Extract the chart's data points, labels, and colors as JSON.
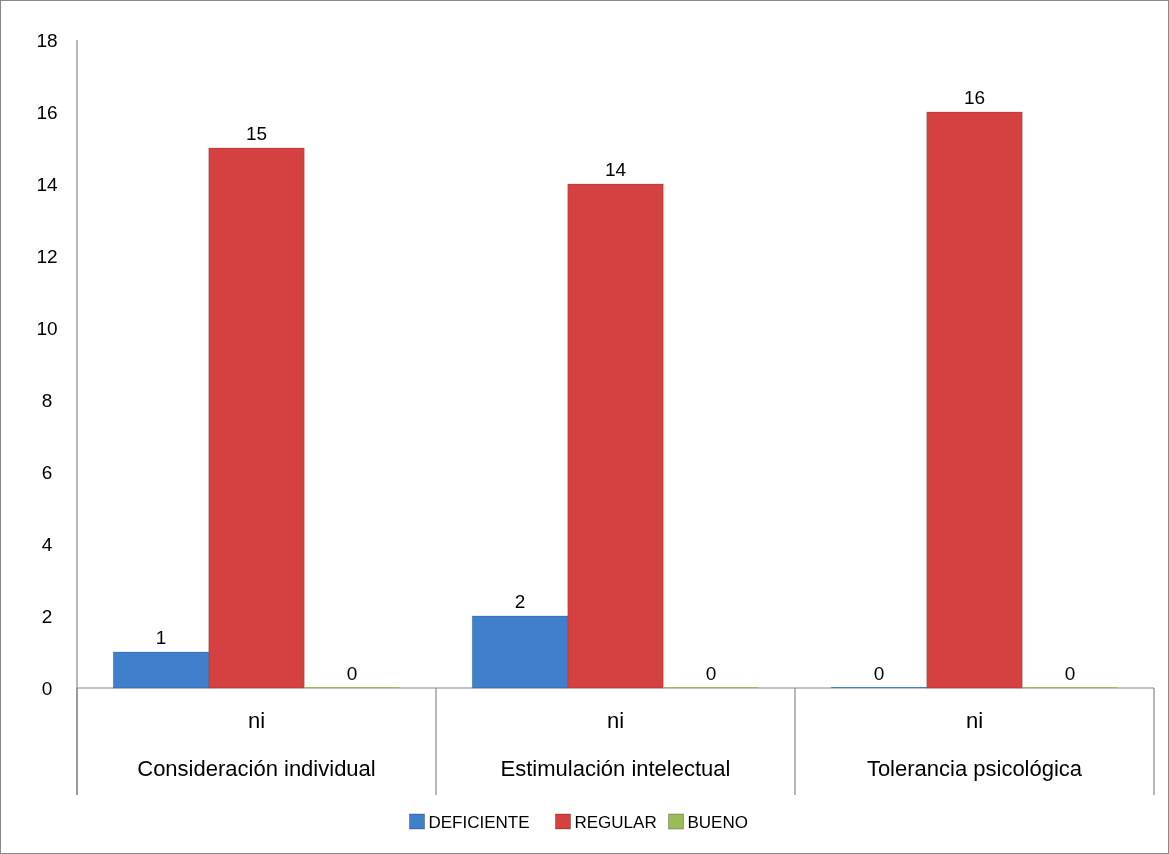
{
  "chart_data": {
    "type": "bar",
    "categories": [
      "ni\nConsideración individual",
      "ni\nEstimulación intelectual",
      "ni\nTolerancia psicológica"
    ],
    "series": [
      {
        "name": "DEFICIENTE",
        "color": "#3f7fcc",
        "values": [
          1,
          2,
          0
        ]
      },
      {
        "name": "REGULAR",
        "color": "#d44140",
        "values": [
          15,
          14,
          16
        ]
      },
      {
        "name": "BUENO",
        "color": "#9bbb59",
        "values": [
          0,
          0,
          0
        ]
      }
    ],
    "ylim": [
      0,
      18
    ],
    "yticks": [
      0,
      2,
      4,
      6,
      8,
      10,
      12,
      14,
      16,
      18
    ],
    "data_labels": true,
    "grid": false,
    "legend": "bottom"
  }
}
